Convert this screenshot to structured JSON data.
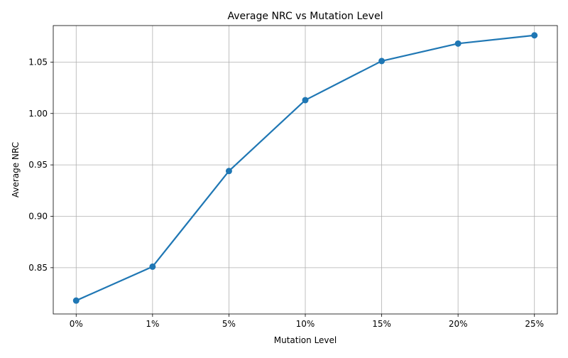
{
  "chart_data": {
    "type": "line",
    "title": "Average NRC vs Mutation Level",
    "xlabel": "Mutation Level",
    "ylabel": "Average NRC",
    "categories": [
      "0%",
      "1%",
      "5%",
      "10%",
      "15%",
      "20%",
      "25%"
    ],
    "series": [
      {
        "values": [
          0.818,
          0.851,
          0.944,
          1.013,
          1.051,
          1.068,
          1.076
        ],
        "color": "#1f77b4",
        "marker": "circle"
      }
    ],
    "ylim": [
      0.805,
      1.0855
    ],
    "yticks": [
      0.85,
      0.9,
      0.95,
      1.0,
      1.05
    ],
    "ytick_labels": [
      "0.85",
      "0.90",
      "0.95",
      "1.00",
      "1.05"
    ],
    "grid": true
  }
}
